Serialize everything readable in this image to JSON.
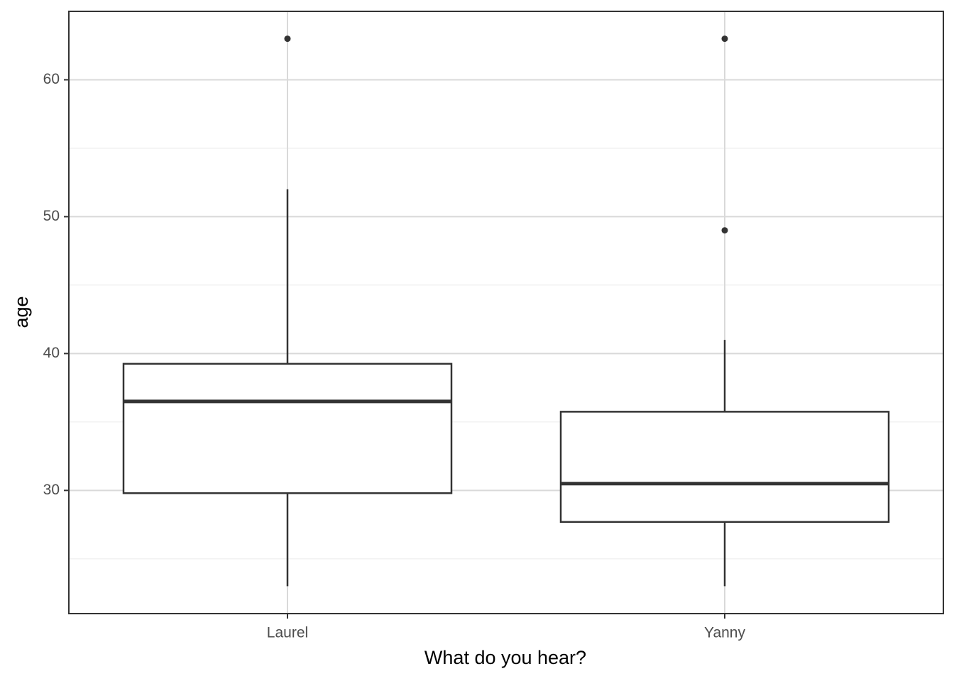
{
  "chart_data": {
    "type": "box",
    "x_label": "What do you hear?",
    "y_label": "age",
    "categories": [
      "Laurel",
      "Yanny"
    ],
    "boxes": [
      {
        "whisker_low": 23,
        "q1": 29.8,
        "median": 36.5,
        "q3": 39.25,
        "whisker_high": 52,
        "outliers": [
          63
        ]
      },
      {
        "whisker_low": 23,
        "q1": 27.7,
        "median": 30.5,
        "q3": 35.75,
        "whisker_high": 41,
        "outliers": [
          49,
          63
        ]
      }
    ],
    "ylim": [
      21,
      65
    ],
    "yticks": [
      30,
      40,
      50,
      60
    ],
    "minor_yticks": [
      25,
      35,
      45,
      55
    ],
    "grid": true,
    "color": "#333333"
  }
}
